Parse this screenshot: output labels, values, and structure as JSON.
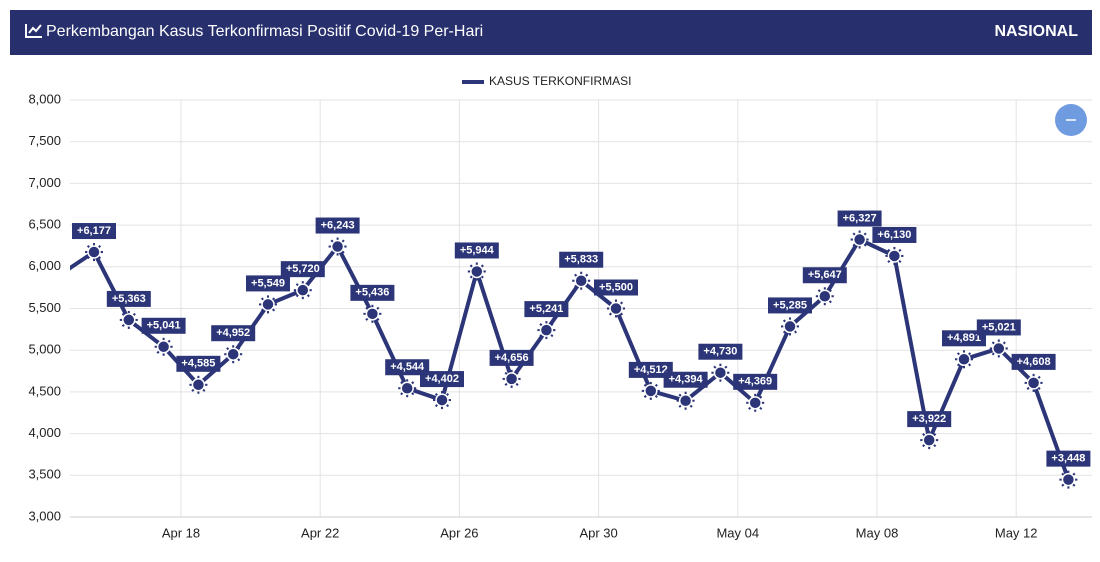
{
  "header": {
    "title": "Perkembangan Kasus Terkonfirmasi Positif Covid-19 Per-Hari",
    "scope": "NASIONAL"
  },
  "chart_data": {
    "type": "line",
    "categories": [
      null,
      null,
      null,
      null,
      "Apr 18",
      null,
      null,
      null,
      "Apr 22",
      null,
      null,
      null,
      "Apr 26",
      null,
      null,
      null,
      "Apr 30",
      null,
      null,
      null,
      "May 04",
      null,
      null,
      null,
      "May 08",
      null,
      null,
      null,
      "May 12",
      null
    ],
    "series": [
      {
        "name": "KASUS TERKONFIRMASI",
        "color": "#2b3577",
        "values": [
          5900,
          6177,
          5363,
          5041,
          4585,
          4952,
          5549,
          5720,
          6243,
          5436,
          4544,
          4402,
          5944,
          4656,
          5241,
          5833,
          5500,
          4512,
          4394,
          4730,
          4369,
          5285,
          5647,
          6327,
          6130,
          3922,
          4891,
          5021,
          4608,
          3448
        ],
        "value_labels": [
          null,
          "+6,177",
          "+5,363",
          "+5,041",
          "+4,585",
          "+4,952",
          "+5,549",
          "+5,720",
          "+6,243",
          "+5,436",
          "+4,544",
          "+4,402",
          "+5,944",
          "+4,656",
          "+5,241",
          "+5,833",
          "+5,500",
          "+4,512",
          "+4,394",
          "+4,730",
          "+4,369",
          "+5,285",
          "+5,647",
          "+6,327",
          "+6,130",
          "+3,922",
          "+4,891",
          "+5,021",
          "+4,608",
          "+3,448"
        ]
      }
    ],
    "ylim": [
      3000,
      8000
    ],
    "yticks": [
      {
        "value": 3000,
        "label": "3,000"
      },
      {
        "value": 3500,
        "label": "3,500"
      },
      {
        "value": 4000,
        "label": "4,000"
      },
      {
        "value": 4500,
        "label": "4,500"
      },
      {
        "value": 5000,
        "label": "5,000"
      },
      {
        "value": 5500,
        "label": "5,500"
      },
      {
        "value": 6000,
        "label": "6,000"
      },
      {
        "value": 6500,
        "label": "6,500"
      },
      {
        "value": 7000,
        "label": "7,000"
      },
      {
        "value": 7500,
        "label": "7,500"
      },
      {
        "value": 8000,
        "label": "8,000"
      }
    ],
    "grid": true,
    "legend": "top"
  }
}
